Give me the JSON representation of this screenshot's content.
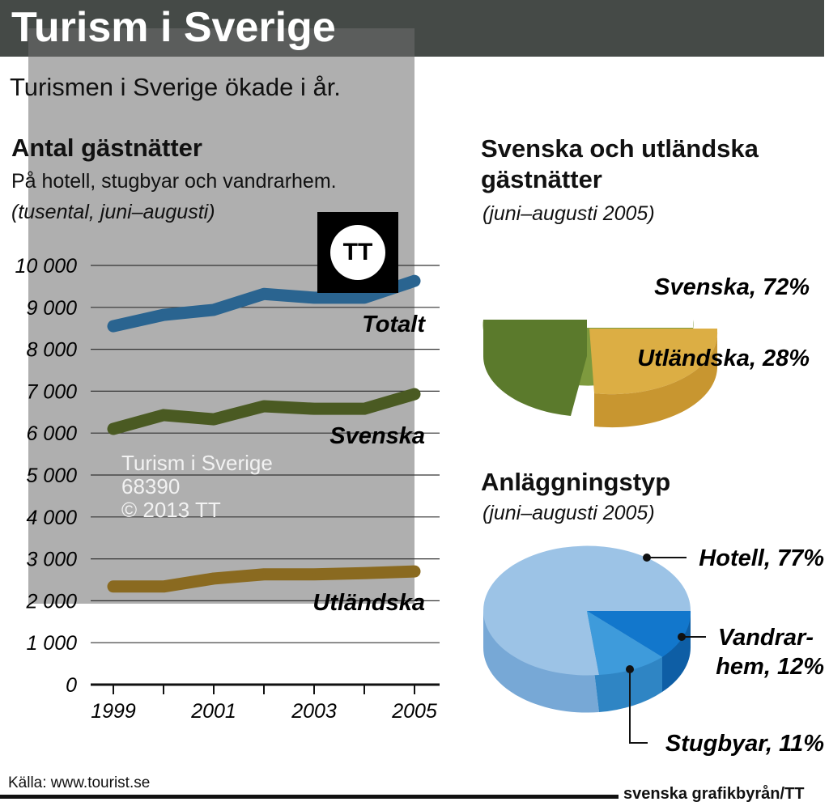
{
  "header": {
    "title": "Turism i Sverige",
    "subtitle": "Turismen i Sverige ökade i år."
  },
  "left": {
    "heading": "Antal gästnätter",
    "desc": "På hotell, stugbyar och vandrarhem.",
    "unit": "(tusental, juni–augusti)"
  },
  "chart_data": [
    {
      "type": "line",
      "title": "Antal gästnätter",
      "ylabel": "tusental",
      "ylim": [
        0,
        10000
      ],
      "yticks": [
        "0",
        "1 000",
        "2 000",
        "3 000",
        "4 000",
        "5 000",
        "6 000",
        "7 000",
        "8 000",
        "9 000",
        "10 000"
      ],
      "xticks": [
        "1999",
        "2001",
        "2003",
        "2005"
      ],
      "x": [
        1999,
        2000,
        2001,
        2002,
        2003,
        2004,
        2005
      ],
      "series": [
        {
          "name": "Totalt",
          "color": "#2a6490",
          "values": [
            8550,
            8820,
            8940,
            9320,
            9230,
            9230,
            9630
          ]
        },
        {
          "name": "Svenska",
          "color": "#4a5a22",
          "values": [
            6100,
            6430,
            6330,
            6640,
            6580,
            6580,
            6930
          ]
        },
        {
          "name": "Utländska",
          "color": "#8a6a20",
          "values": [
            2340,
            2340,
            2530,
            2630,
            2630,
            2660,
            2700
          ]
        }
      ]
    },
    {
      "type": "pie",
      "title": "Svenska och utländska gästnätter",
      "subtitle": "(juni–augusti 2005)",
      "slices": [
        {
          "label": "Svenska, 72%",
          "value": 72,
          "color": "#7e9a3e"
        },
        {
          "label": "Utländska, 28%",
          "value": 28,
          "color": "#dcae44"
        }
      ]
    },
    {
      "type": "pie",
      "title": "Anläggningstyp",
      "subtitle": "(juni–augusti 2005)",
      "slices": [
        {
          "label": "Hotell, 77%",
          "value": 77,
          "color": "#9cc3e6"
        },
        {
          "label": "Vandrar-\nhem, 12%",
          "label_lines": [
            "Vandrar-",
            "hem, 12%"
          ],
          "value": 12,
          "color": "#1277cc"
        },
        {
          "label": "Stugbyar, 11%",
          "value": 11,
          "color": "#3e9bdb"
        }
      ]
    }
  ],
  "footer": {
    "source": "Källa: www.tourist.se",
    "brand": "svenska grafikbyrån/TT"
  },
  "watermark": {
    "logo": "TT",
    "lines": [
      "Turism i Sverige",
      "68390",
      "© 2013 TT"
    ]
  }
}
